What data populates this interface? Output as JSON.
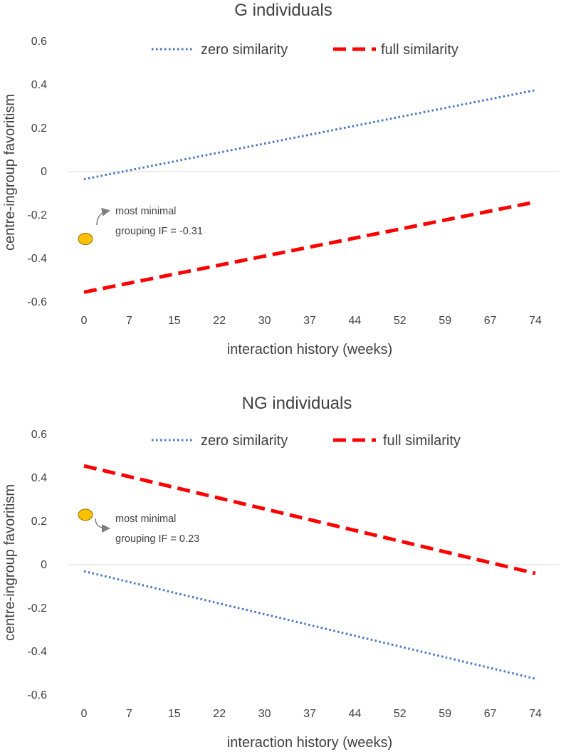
{
  "chart_data": [
    {
      "type": "line",
      "title": "G individuals",
      "xlabel": "interaction history (weeks)",
      "ylabel": "centre-ingroup favoritism",
      "xticks": [
        "0",
        "7",
        "15",
        "22",
        "30",
        "37",
        "44",
        "52",
        "59",
        "67",
        "74"
      ],
      "xlim": [
        0,
        74
      ],
      "yticks": [
        "0.6",
        "0.4",
        "0.2",
        "0",
        "-0.2",
        "-0.4",
        "-0.6"
      ],
      "ylim": [
        -0.6,
        0.6
      ],
      "legend": "top",
      "series": [
        {
          "name": "zero similarity",
          "style": "dotted",
          "color": "#4472c4",
          "x": [
            0,
            74
          ],
          "y": [
            -0.035,
            0.375
          ]
        },
        {
          "name": "full similarity",
          "style": "dashed",
          "color": "#ff0000",
          "x": [
            0,
            74
          ],
          "y": [
            -0.555,
            -0.14
          ]
        }
      ],
      "annotation": {
        "line1": "most minimal",
        "line2": "grouping IF = -0.31",
        "x": 0,
        "y": -0.31,
        "marker_color": "#ffc000"
      }
    },
    {
      "type": "line",
      "title": "NG individuals",
      "xlabel": "interaction history (weeks)",
      "ylabel": "centre-ingroup favoritism",
      "xticks": [
        "0",
        "7",
        "15",
        "22",
        "30",
        "37",
        "44",
        "52",
        "59",
        "67",
        "74"
      ],
      "xlim": [
        0,
        74
      ],
      "yticks": [
        "0.6",
        "0.4",
        "0.2",
        "0",
        "-0.2",
        "-0.4",
        "-0.6"
      ],
      "ylim": [
        -0.6,
        0.6
      ],
      "legend": "top",
      "series": [
        {
          "name": "zero similarity",
          "style": "dotted",
          "color": "#4472c4",
          "x": [
            0,
            74
          ],
          "y": [
            -0.03,
            -0.525
          ]
        },
        {
          "name": "full similarity",
          "style": "dashed",
          "color": "#ff0000",
          "x": [
            0,
            74
          ],
          "y": [
            0.455,
            -0.04
          ]
        }
      ],
      "annotation": {
        "line1": "most minimal",
        "line2": "grouping IF = 0.23",
        "x": 0,
        "y": 0.23,
        "marker_color": "#ffc000"
      }
    }
  ]
}
